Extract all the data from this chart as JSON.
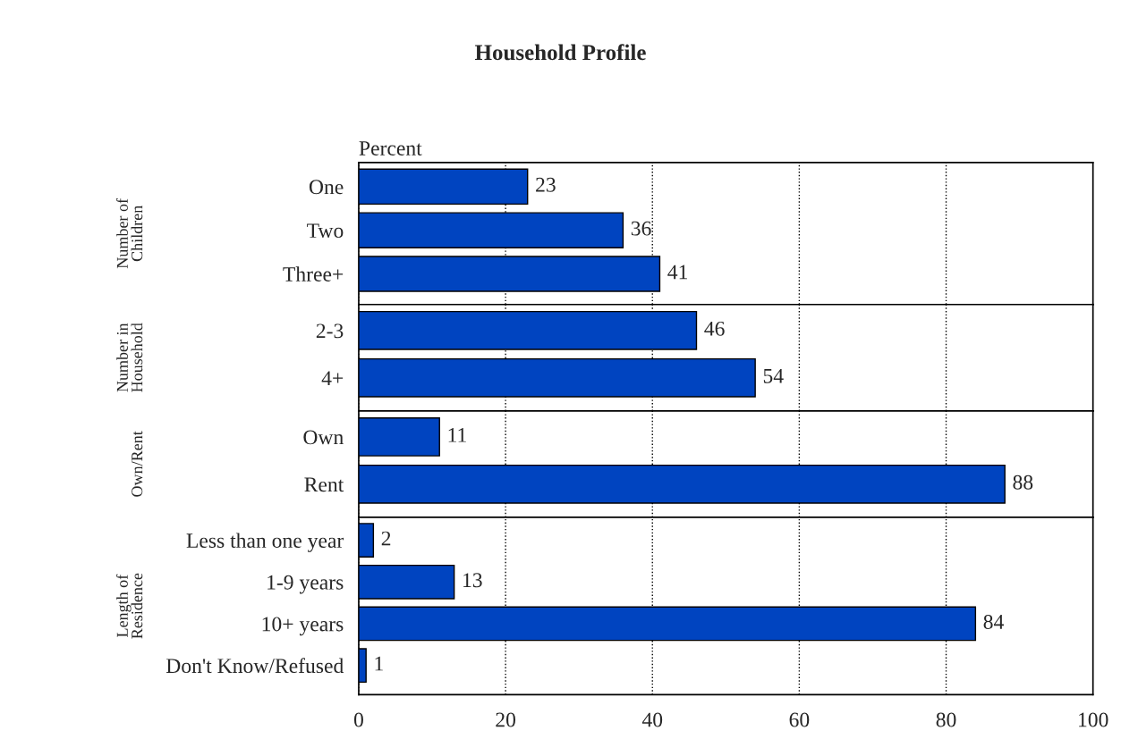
{
  "chart_data": [
    {
      "type": "bar",
      "orientation": "horizontal",
      "title": "Household Profile",
      "subtitle": "Percent",
      "ylabel": "Number of Children",
      "categories": [
        "One",
        "Two",
        "Three+"
      ],
      "values": [
        23,
        36,
        41
      ],
      "color": "#0044c0",
      "data_labels": true,
      "xlim": [
        0,
        100
      ],
      "xticks": [
        0,
        20,
        40,
        60,
        80,
        100
      ],
      "grid": "x",
      "tick_labels": "y"
    },
    {
      "type": "bar",
      "orientation": "horizontal",
      "ylabel": "Number in Household",
      "categories": [
        "2-3",
        "4+"
      ],
      "values": [
        46,
        54
      ],
      "color": "#0044c0",
      "data_labels": true,
      "xlim": [
        0,
        100
      ],
      "xticks": [
        0,
        20,
        40,
        60,
        80,
        100
      ],
      "grid": "x",
      "tick_labels": "y"
    },
    {
      "type": "bar",
      "orientation": "horizontal",
      "ylabel": "Own/Rent",
      "categories": [
        "Own",
        "Rent"
      ],
      "values": [
        11,
        88
      ],
      "color": "#0044c0",
      "data_labels": true,
      "xlim": [
        0,
        100
      ],
      "xticks": [
        0,
        20,
        40,
        60,
        80,
        100
      ],
      "grid": "x",
      "tick_labels": "y"
    },
    {
      "type": "bar",
      "orientation": "horizontal",
      "ylabel": "Length of Residence",
      "categories": [
        "Less than one year",
        "1-9 years",
        "10+ years",
        "Don't Know/Refused"
      ],
      "values": [
        2,
        13,
        84,
        1
      ],
      "color": "#0044c0",
      "data_labels": true,
      "xlim": [
        0,
        100
      ],
      "xticks": [
        0,
        20,
        40,
        60,
        80,
        100
      ],
      "grid": "x"
    }
  ]
}
